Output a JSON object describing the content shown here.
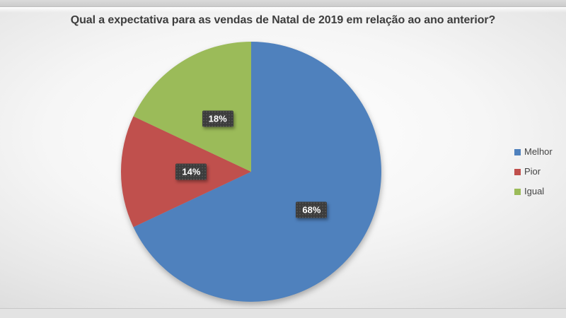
{
  "title": "Qual a expectativa para as vendas de Natal de 2019 em relação ao ano anterior?",
  "chart_data": {
    "type": "pie",
    "title": "Qual a expectativa para as vendas de Natal de 2019 em relação ao ano anterior?",
    "categories": [
      "Melhor",
      "Pior",
      "Igual"
    ],
    "values": [
      68,
      14,
      18
    ],
    "unit": "%",
    "data_labels": [
      "68%",
      "14%",
      "18%"
    ],
    "colors": [
      "#4f81bd",
      "#c0504d",
      "#9bbb59"
    ],
    "start_angle_deg": 0,
    "direction": "clockwise",
    "legend_position": "right",
    "data_label_background": "#3c3c3c",
    "data_label_text_color": "#ffffff"
  },
  "legend": {
    "items": [
      {
        "label": "Melhor",
        "color": "#4f81bd"
      },
      {
        "label": "Pior",
        "color": "#c0504d"
      },
      {
        "label": "Igual",
        "color": "#9bbb59"
      }
    ]
  }
}
